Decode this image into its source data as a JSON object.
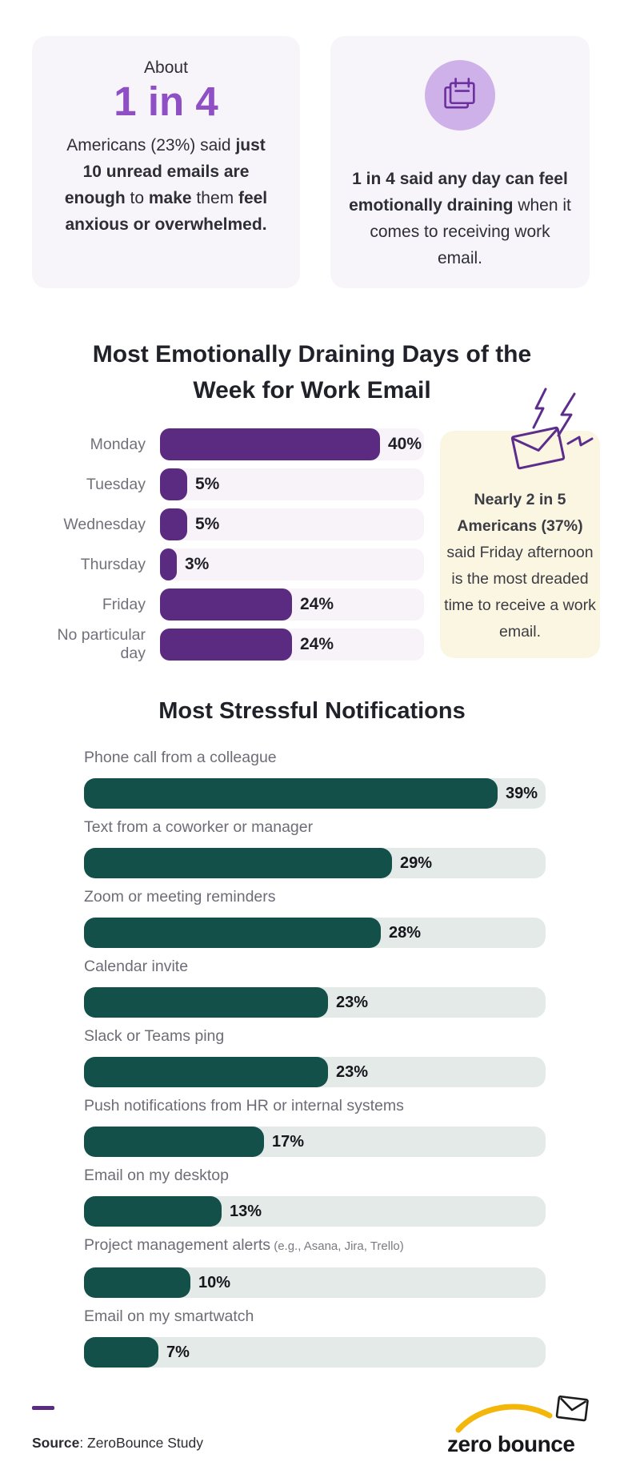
{
  "cards": {
    "left": {
      "kicker": "About",
      "stat": "1 in 4",
      "desc_parts": [
        {
          "text": "Americans (23%) said ",
          "bold": false
        },
        {
          "text": "just 10 unread emails are enough",
          "bold": true
        },
        {
          "text": " to ",
          "bold": false
        },
        {
          "text": "make",
          "bold": true
        },
        {
          "text": " them ",
          "bold": false
        },
        {
          "text": "feel anxious or overwhelmed.",
          "bold": true
        }
      ]
    },
    "right": {
      "icon": "calendar-icon",
      "text_parts": [
        {
          "text": "1 in 4 said any day can feel emotionally draining",
          "bold": true
        },
        {
          "text": " when it comes to receiving work email.",
          "bold": false
        }
      ]
    }
  },
  "callout": {
    "icon": "envelope-lightning-icon",
    "bg": "#fbf6e1",
    "text_parts": [
      {
        "text": "Nearly 2 in 5 Americans (37%)",
        "bold": true
      },
      {
        "text": " said Friday afternoon is the most dreaded time to receive a work email.",
        "bold": false
      }
    ]
  },
  "chart_data": [
    {
      "type": "bar",
      "orientation": "horizontal",
      "title": "Most Emotionally Draining Days of the Week for Work Email",
      "title_lines": [
        "Most Emotionally Draining Days of the",
        "Week for Work Email"
      ],
      "categories": [
        "Monday",
        "Tuesday",
        "Wednesday",
        "Thursday",
        "Friday",
        "No particular day"
      ],
      "values": [
        40,
        5,
        5,
        3,
        24,
        24
      ],
      "unit": "%",
      "xlim": [
        0,
        48
      ],
      "grid": false,
      "bar_color": "#5b2a81",
      "track_color": "#f8f3f9"
    },
    {
      "type": "bar",
      "orientation": "horizontal",
      "title": "Most Stressful Notifications",
      "categories": [
        "Phone call from a colleague",
        "Text from a coworker or manager",
        "Zoom or meeting reminders",
        "Calendar invite",
        "Slack or Teams ping",
        "Push notifications from HR or internal systems",
        "Email on my desktop",
        "Project management alerts",
        "Email on my smartwatch"
      ],
      "label_notes": [
        "",
        "",
        "",
        "",
        "",
        "",
        "",
        "(e.g., Asana, Jira, Trello)",
        ""
      ],
      "values": [
        39,
        29,
        28,
        23,
        23,
        17,
        13,
        10,
        7
      ],
      "unit": "%",
      "xlim": [
        0,
        43.5
      ],
      "grid": false,
      "bar_color": "#13504a",
      "track_color": "#e4eae7"
    }
  ],
  "colors": {
    "accent_purple": "#5b2a81",
    "stat_purple": "#8e50c4",
    "accent_teal": "#13504a",
    "card_bg": "#f8f5fa",
    "callout_bg": "#fbf6e1",
    "logo_yellow": "#f2b70a"
  },
  "footer": {
    "source_label": "Source",
    "source_rest": ": ZeroBounce Study",
    "logo_text": "zero bounce"
  }
}
